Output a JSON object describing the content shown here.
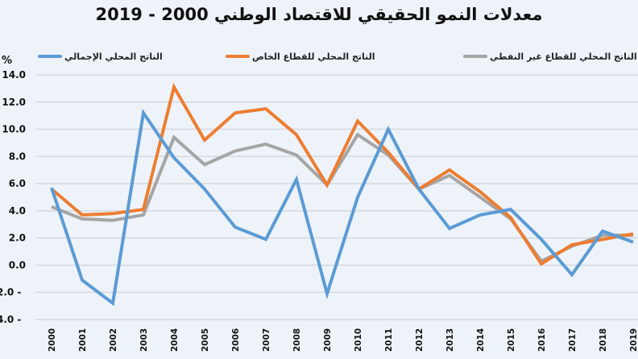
{
  "chart_data": {
    "type": "line",
    "title": "معدلات النمو الحقيقي للاقتصاد الوطني 2000 - 2019",
    "xlabel": "",
    "ylabel": "%",
    "ylim": [
      -4,
      14
    ],
    "yticks": [
      "14.0",
      "12.0",
      "10.0",
      "8.0",
      "6.0",
      "4.0",
      "2.0",
      "0.0",
      "2.0 -",
      "4.0 -"
    ],
    "ytick_values": [
      14,
      12,
      10,
      8,
      6,
      4,
      2,
      0,
      -2,
      -4
    ],
    "grid": true,
    "legend_position": "top",
    "categories": [
      "2000",
      "2001",
      "2002",
      "2003",
      "2004",
      "2005",
      "2006",
      "2007",
      "2008",
      "2009",
      "2010",
      "2011",
      "2012",
      "2013",
      "2014",
      "2015",
      "2016",
      "2017",
      "2018",
      "2019"
    ],
    "series": [
      {
        "name": "الناتج المحلي الإجمالي",
        "color": "#5b9bd5",
        "values": [
          5.7,
          -1.1,
          -2.8,
          11.2,
          7.9,
          5.6,
          2.8,
          1.9,
          6.3,
          -2.1,
          5.0,
          10.0,
          5.6,
          2.7,
          3.7,
          4.1,
          1.9,
          -0.7,
          2.5,
          1.7
        ]
      },
      {
        "name": "الناتج المحلي للقطاع الخاص",
        "color": "#ed7d31",
        "values": [
          5.6,
          3.7,
          3.8,
          4.1,
          13.1,
          9.2,
          11.2,
          11.5,
          9.6,
          5.9,
          10.6,
          8.3,
          5.6,
          7.0,
          5.4,
          3.5,
          0.1,
          1.5,
          1.9,
          2.3
        ]
      },
      {
        "name": "الناتج المحلي للقطاع غير النفطي",
        "color": "#a5a5a5",
        "values": [
          4.3,
          3.4,
          3.3,
          3.7,
          9.4,
          7.4,
          8.4,
          8.9,
          8.1,
          5.9,
          9.6,
          8.1,
          5.6,
          6.6,
          5.0,
          3.4,
          0.3,
          1.4,
          2.2,
          2.2
        ]
      }
    ]
  }
}
